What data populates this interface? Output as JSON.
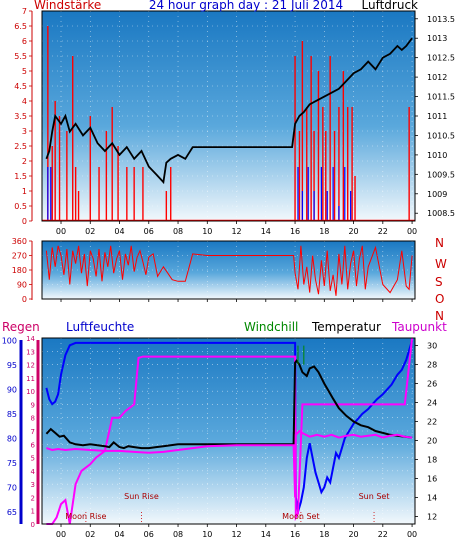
{
  "header": {
    "left_label": "Windstärke",
    "title": "24 hour graph day : 21 Juli 2014",
    "right_label": "Luftdruck",
    "colors": {
      "left_label": "#cc0000",
      "title": "#0000cc",
      "right_label": "#000000"
    }
  },
  "bottom_header": {
    "regen": "Regen",
    "luftfeuchte": "Luftfeuchte",
    "windchill": "Windchill",
    "temperatur": "Temperatur",
    "taupunkt": "Taupunkt",
    "colors": {
      "regen": "#cc0066",
      "luftfeuchte": "#0000cc",
      "windchill": "#008800",
      "temperatur": "#000000",
      "taupunkt": "#cc00cc"
    }
  },
  "direction_labels": [
    "N",
    "W",
    "S",
    "O",
    "N"
  ],
  "chart_data": [
    {
      "type": "line",
      "name": "wind-pressure",
      "x_ticks": [
        "00",
        "02",
        "04",
        "06",
        "08",
        "10",
        "12",
        "14",
        "16",
        "18",
        "20",
        "22",
        "00"
      ],
      "y_left": {
        "label": "Windstärke",
        "ticks": [
          "0",
          "0.5",
          "1",
          "1.5",
          "2",
          "2.5",
          "3",
          "3.5",
          "4",
          "4.5",
          "5",
          "5.5",
          "6",
          "6.5",
          "7"
        ],
        "ylim": [
          0,
          7
        ]
      },
      "y_right": {
        "label": "Luftdruck",
        "ticks": [
          "1008.5",
          "1009",
          "1009.5",
          "1010",
          "1010.5",
          "1011",
          "1011.5",
          "1012",
          "1012.5",
          "1013",
          "1013.5"
        ],
        "ylim": [
          1008.3,
          1013.7
        ]
      },
      "grid": true,
      "series": [
        {
          "name": "Luftdruck",
          "axis": "right",
          "color": "#000000",
          "x": [
            -1,
            -0.8,
            -0.6,
            -0.4,
            -0.2,
            0,
            0.3,
            0.6,
            1,
            1.5,
            2,
            2.5,
            3,
            3.5,
            4,
            4.5,
            5,
            5.5,
            6,
            6.5,
            7,
            7.2,
            7.5,
            8,
            8.5,
            9,
            10,
            12,
            14,
            15.8,
            16,
            16.3,
            16.6,
            17,
            17.5,
            18,
            18.5,
            19,
            19.5,
            20,
            20.5,
            21,
            21.5,
            22,
            22.5,
            23,
            23.3,
            23.6,
            24
          ],
          "values": [
            1009.9,
            1010.1,
            1010.6,
            1011.0,
            1010.9,
            1010.8,
            1011.0,
            1010.6,
            1010.8,
            1010.5,
            1010.7,
            1010.3,
            1010.1,
            1010.3,
            1010.0,
            1010.2,
            1009.9,
            1010.1,
            1009.7,
            1009.5,
            1009.3,
            1009.8,
            1009.9,
            1010.0,
            1009.9,
            1010.2,
            1010.2,
            1010.2,
            1010.2,
            1010.2,
            1010.8,
            1011.0,
            1011.1,
            1011.3,
            1011.4,
            1011.5,
            1011.6,
            1011.7,
            1011.9,
            1012.1,
            1012.2,
            1012.4,
            1012.2,
            1012.5,
            1012.6,
            1012.8,
            1012.7,
            1012.8,
            1013.0
          ]
        },
        {
          "name": "Windstärke",
          "axis": "left",
          "color": "#ff0000",
          "x": [
            -0.9,
            -0.6,
            -0.4,
            -0.1,
            0.4,
            0.8,
            1.0,
            1.2,
            2.0,
            2.6,
            3.1,
            3.5,
            3.9,
            4.5,
            5.0,
            5.6,
            7.2,
            7.5,
            16.0,
            16.3,
            16.5,
            16.8,
            17.1,
            17.3,
            17.6,
            17.9,
            18.1,
            18.4,
            18.7,
            19.0,
            19.3,
            19.6,
            19.9,
            20.1,
            23.8
          ],
          "values": [
            6.5,
            2.5,
            4.0,
            3.5,
            3.0,
            5.5,
            1.8,
            1.0,
            3.5,
            1.8,
            3.0,
            3.8,
            2.5,
            1.8,
            1.8,
            1.8,
            1.0,
            1.8,
            5.5,
            3.0,
            6.0,
            3.8,
            5.5,
            3.0,
            5.0,
            3.8,
            3.0,
            5.5,
            3.0,
            3.8,
            5.0,
            3.8,
            3.8,
            1.5,
            3.8
          ]
        },
        {
          "name": "Windstärke-Böen",
          "axis": "left",
          "color": "#0000ff",
          "x": [
            -0.9,
            -0.7,
            16.2,
            16.5,
            16.9,
            17.3,
            17.8,
            18.2,
            18.6,
            19.0,
            19.4,
            19.8
          ],
          "values": [
            1.8,
            1.8,
            1.8,
            1.0,
            1.8,
            1.0,
            1.8,
            1.0,
            1.8,
            0.5,
            1.8,
            1.0
          ]
        }
      ]
    },
    {
      "type": "line",
      "name": "wind-direction",
      "x_ticks": [
        "00",
        "02",
        "04",
        "06",
        "08",
        "10",
        "12",
        "14",
        "16",
        "18",
        "20",
        "22",
        "00"
      ],
      "y_left": {
        "ticks": [
          "0",
          "90",
          "180",
          "270",
          "360"
        ],
        "ylim": [
          0,
          360
        ]
      },
      "grid": true,
      "series": [
        {
          "name": "Windrichtung",
          "color": "#ff0000",
          "x": [
            -1,
            -0.8,
            -0.6,
            -0.4,
            -0.2,
            0,
            0.2,
            0.4,
            0.6,
            0.8,
            1,
            1.2,
            1.4,
            1.6,
            1.8,
            2,
            2.2,
            2.4,
            2.6,
            2.8,
            3,
            3.2,
            3.4,
            3.6,
            3.8,
            4,
            4.2,
            4.4,
            4.6,
            4.8,
            5,
            5.2,
            5.4,
            5.6,
            5.8,
            6,
            6.3,
            6.6,
            7,
            7.3,
            7.6,
            8,
            8.5,
            9,
            10,
            12,
            14,
            15.9,
            16,
            16.2,
            16.4,
            16.6,
            16.8,
            17,
            17.2,
            17.4,
            17.6,
            17.8,
            18,
            18.2,
            18.4,
            18.6,
            18.8,
            19,
            19.2,
            19.4,
            19.6,
            19.8,
            20,
            20.2,
            20.4,
            20.6,
            20.8,
            21,
            21.5,
            22,
            22.5,
            23,
            23.3,
            23.6,
            23.8,
            24
          ],
          "values": [
            300,
            120,
            320,
            200,
            330,
            270,
            150,
            310,
            90,
            300,
            220,
            330,
            160,
            280,
            80,
            300,
            250,
            140,
            310,
            110,
            290,
            200,
            330,
            160,
            250,
            300,
            120,
            280,
            210,
            330,
            170,
            260,
            300,
            230,
            150,
            260,
            280,
            140,
            200,
            160,
            120,
            110,
            110,
            280,
            270,
            270,
            270,
            270,
            160,
            60,
            330,
            90,
            200,
            40,
            270,
            120,
            30,
            240,
            80,
            300,
            50,
            150,
            20,
            280,
            90,
            330,
            60,
            220,
            300,
            80,
            250,
            330,
            60,
            200,
            320,
            90,
            40,
            120,
            300,
            80,
            60,
            270
          ]
        }
      ]
    },
    {
      "type": "line",
      "name": "temperature-humidity",
      "x_ticks": [
        "00",
        "02",
        "04",
        "06",
        "08",
        "10",
        "12",
        "14",
        "16",
        "18",
        "20",
        "22",
        "00"
      ],
      "axes": {
        "regen": {
          "ticks": [
            "0",
            "1",
            "2",
            "3",
            "4",
            "5",
            "6",
            "7",
            "8",
            "9",
            "10",
            "11",
            "12",
            "13",
            "14"
          ],
          "ylim": [
            0,
            14
          ]
        },
        "luftfeuchte": {
          "ticks": [
            "65",
            "70",
            "75",
            "80",
            "85",
            "90",
            "95",
            "100"
          ],
          "ylim": [
            62.5,
            100.5
          ]
        },
        "temperatur": {
          "ticks": [
            "12",
            "14",
            "16",
            "18",
            "20",
            "22",
            "24",
            "26",
            "28",
            "30"
          ],
          "ylim": [
            11.2,
            30.8
          ]
        }
      },
      "annotations": [
        {
          "text": "Moon Rise",
          "x": 1.7
        },
        {
          "text": "Sun Rise",
          "x": 5.5
        },
        {
          "text": "Moon Set",
          "x": 16.4
        },
        {
          "text": "Sun Set",
          "x": 21.4
        }
      ],
      "grid": true,
      "series": [
        {
          "name": "Luftfeuchte",
          "axis": "luftfeuchte",
          "color": "#0000ff",
          "x": [
            -1,
            -0.8,
            -0.6,
            -0.4,
            -0.2,
            0,
            0.3,
            0.6,
            1,
            16,
            16.05,
            16.2,
            16.4,
            16.6,
            16.8,
            17,
            17.2,
            17.4,
            17.6,
            17.8,
            18,
            18.2,
            18.4,
            18.6,
            18.8,
            19,
            19.2,
            19.4,
            19.6,
            19.8,
            20,
            20.3,
            20.6,
            21,
            21.3,
            21.6,
            22,
            22.3,
            22.6,
            23,
            23.3,
            23.6,
            24
          ],
          "values": [
            90.3,
            88,
            87,
            87.5,
            89,
            93,
            97,
            99,
            99.5,
            99.5,
            68,
            65,
            67,
            70,
            76,
            79,
            76,
            73,
            71,
            69,
            70,
            72,
            71,
            74,
            77,
            76,
            78,
            80,
            81,
            82,
            83,
            84,
            85,
            86,
            87,
            88,
            89,
            90,
            91,
            93,
            94,
            96,
            100
          ]
        },
        {
          "name": "Regen",
          "axis": "regen",
          "color": "#ff00ff",
          "x": [
            -1,
            -0.6,
            -0.3,
            0,
            0.3,
            0.6,
            1,
            1.4,
            2,
            2.4,
            3,
            3.5,
            4,
            4.4,
            5,
            5.3,
            5.6,
            6,
            16,
            16.05,
            16.2,
            16.5,
            17,
            20,
            22,
            23.5,
            24
          ],
          "values": [
            0,
            0,
            0.5,
            1.5,
            1.8,
            0,
            3,
            4,
            4.5,
            5,
            5.5,
            8,
            8,
            8.5,
            9,
            12.5,
            12.6,
            12.6,
            12.6,
            0.5,
            0.8,
            9,
            9,
            9,
            9,
            9,
            14
          ]
        },
        {
          "name": "Temperatur",
          "axis": "temperatur",
          "color": "#000000",
          "x": [
            -1,
            -0.7,
            -0.4,
            -0.1,
            0.2,
            0.6,
            1,
            1.5,
            2,
            2.5,
            3,
            3.3,
            3.6,
            4,
            4.3,
            4.6,
            5,
            5.5,
            6,
            6.5,
            7,
            7.5,
            8,
            9,
            10,
            12,
            14,
            15.9,
            16,
            16.1,
            16.3,
            16.5,
            16.8,
            17,
            17.3,
            17.6,
            18,
            18.3,
            18.6,
            19,
            19.5,
            20,
            20.5,
            21,
            21.5,
            22,
            22.5,
            23,
            23.5,
            24
          ],
          "values": [
            20.7,
            21.2,
            20.8,
            20.4,
            20.5,
            19.8,
            19.6,
            19.5,
            19.6,
            19.5,
            19.4,
            19.3,
            19.8,
            19.3,
            19.2,
            19.4,
            19.3,
            19.2,
            19.2,
            19.3,
            19.4,
            19.5,
            19.6,
            19.6,
            19.6,
            19.6,
            19.6,
            19.6,
            28.2,
            28.4,
            28.0,
            27.2,
            26.8,
            27.6,
            27.8,
            27.2,
            26.0,
            25.2,
            24.4,
            23.4,
            22.6,
            22.0,
            21.6,
            21.4,
            21.0,
            20.8,
            20.6,
            20.5,
            20.4,
            20.3
          ]
        },
        {
          "name": "Taupunkt",
          "axis": "temperatur",
          "color": "#ff00ff",
          "x": [
            -1,
            -0.6,
            -0.2,
            0.3,
            1,
            2,
            3,
            4,
            5,
            6,
            7,
            8,
            9,
            10,
            12,
            14,
            15.9,
            16,
            16.05,
            16.3,
            16.6,
            17,
            17.5,
            18,
            18.5,
            19,
            19.5,
            20,
            20.5,
            21,
            21.5,
            22,
            22.5,
            23,
            23.5,
            24
          ],
          "values": [
            19.2,
            19.0,
            19.1,
            19.0,
            19.1,
            19.0,
            18.9,
            18.9,
            18.8,
            18.7,
            18.8,
            19.0,
            19.2,
            19.4,
            19.5,
            19.5,
            19.5,
            14.0,
            20.6,
            21.0,
            20.7,
            20.4,
            20.6,
            20.4,
            20.6,
            20.3,
            20.5,
            20.6,
            20.4,
            20.5,
            20.6,
            20.3,
            20.5,
            20.6,
            20.4,
            20.3
          ]
        },
        {
          "name": "Windchill",
          "axis": "temperatur",
          "color": "#008800",
          "x": [
            16.2,
            16.2,
            16.6,
            16.6
          ],
          "values": [
            28.0,
            30.0,
            28.0,
            30.0
          ]
        }
      ]
    }
  ]
}
